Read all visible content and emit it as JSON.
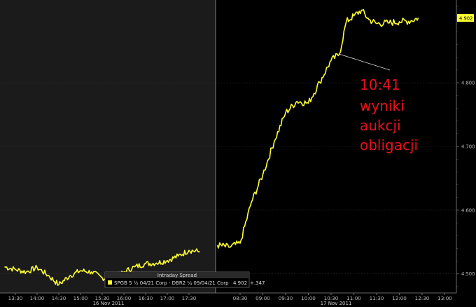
{
  "chart_data": {
    "type": "line",
    "title": "",
    "legend": {
      "title": "Intraday Spread",
      "entry": "SPGB 5 ½ 04/21 Corp - DBR2 ¼ 09/04/21 Corp",
      "last_value": "4.902",
      "change": "+.347",
      "color": "#ffff33",
      "placement": "bottom-center"
    },
    "date_labels": [
      "16 Nov 2011",
      "17 Nov 2011"
    ],
    "x_ticks": [
      "13:30",
      "14:00",
      "14:30",
      "15:00",
      "15:30",
      "16:00",
      "16:30",
      "17:00",
      "17:30",
      "08:30",
      "09:00",
      "09:30",
      "10:00",
      "10:30",
      "11:00",
      "11:30",
      "12:00",
      "12:30",
      "13:00"
    ],
    "y_ticks": [
      "4.500",
      "4.600",
      "4.700",
      "4.800"
    ],
    "ylim": [
      4.47,
      4.93
    ],
    "last_value_label": "4.902",
    "annotation": {
      "lines": [
        "10:41",
        "wyniki",
        "aukcji",
        "obligacji"
      ],
      "color": "#e8101a",
      "points_to": "10:41"
    },
    "series": [
      {
        "color": "#ffff33",
        "sessions": [
          {
            "label": "16 Nov 2011",
            "x": [
              "13:15",
              "13:30",
              "13:45",
              "14:00",
              "14:15",
              "14:30",
              "14:45",
              "15:00",
              "15:15",
              "15:30",
              "15:45",
              "16:00",
              "16:15",
              "16:30",
              "16:45",
              "17:00",
              "17:15",
              "17:30",
              "17:45"
            ],
            "values": [
              4.511,
              4.507,
              4.503,
              4.51,
              4.498,
              4.483,
              4.497,
              4.505,
              4.503,
              4.494,
              4.491,
              4.503,
              4.511,
              4.516,
              4.517,
              4.521,
              4.528,
              4.537,
              4.535
            ]
          },
          {
            "label": "17 Nov 2011",
            "x": [
              "08:00",
              "08:15",
              "08:30",
              "08:45",
              "09:00",
              "09:15",
              "09:30",
              "09:45",
              "10:00",
              "10:15",
              "10:30",
              "10:41",
              "10:50",
              "11:00",
              "11:10",
              "11:20",
              "11:30",
              "11:45",
              "12:00",
              "12:15",
              "12:25"
            ],
            "values": [
              4.545,
              4.542,
              4.548,
              4.613,
              4.656,
              4.708,
              4.753,
              4.771,
              4.768,
              4.801,
              4.835,
              4.845,
              4.896,
              4.905,
              4.914,
              4.899,
              4.893,
              4.894,
              4.896,
              4.897,
              4.902
            ]
          }
        ]
      }
    ]
  }
}
